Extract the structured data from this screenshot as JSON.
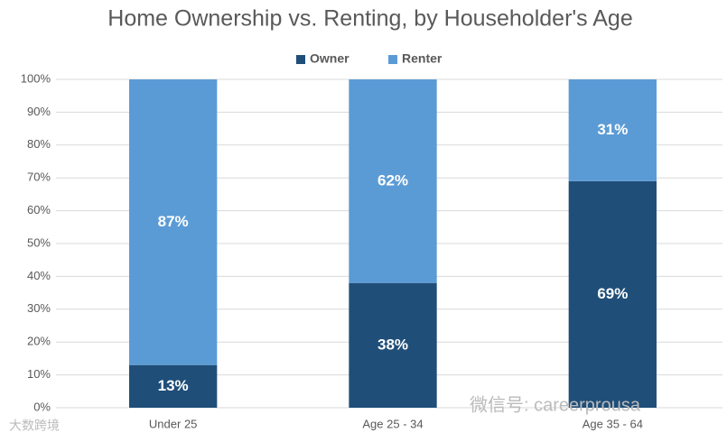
{
  "chart_data": {
    "type": "stacked_bar",
    "title": "Home Ownership vs. Renting, by Householder's Age",
    "categories": [
      "Under 25",
      "Age 25 - 34",
      "Age 35 - 64"
    ],
    "series": [
      {
        "name": "Owner",
        "color": "#1f4e79",
        "values": [
          13,
          38,
          69
        ],
        "value_labels": [
          "13%",
          "38%",
          "69%"
        ]
      },
      {
        "name": "Renter",
        "color": "#5b9bd5",
        "values": [
          87,
          62,
          31
        ],
        "value_labels": [
          "87%",
          "62%",
          "31%"
        ]
      }
    ],
    "ylim": [
      0,
      100
    ],
    "yticks": [
      {
        "value": 0,
        "label": "0%"
      },
      {
        "value": 10,
        "label": "10%"
      },
      {
        "value": 20,
        "label": "20%"
      },
      {
        "value": 30,
        "label": "30%"
      },
      {
        "value": 40,
        "label": "40%"
      },
      {
        "value": 50,
        "label": "50%"
      },
      {
        "value": 60,
        "label": "60%"
      },
      {
        "value": 70,
        "label": "70%"
      },
      {
        "value": 80,
        "label": "80%"
      },
      {
        "value": 90,
        "label": "90%"
      },
      {
        "value": 100,
        "label": "100%"
      }
    ],
    "grid": true,
    "legend": "top",
    "watermarks": [
      "大数跨境",
      "微信号: careerprousa"
    ]
  }
}
